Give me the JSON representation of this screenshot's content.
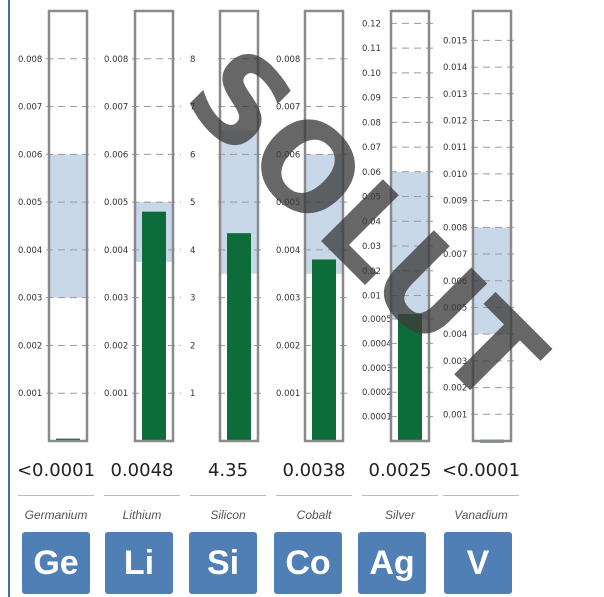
{
  "watermark": "SOLUT",
  "colors": {
    "bar": "#0e6b3a",
    "band": "#c9d8e8",
    "tile": "#4f7fb5",
    "frame": "#8a8a8a"
  },
  "chart_data": [
    {
      "type": "bar",
      "category": "Germanium",
      "symbol": "Ge",
      "value": 5e-05,
      "value_label": "<0.0001",
      "band": [
        0.003,
        0.006
      ],
      "ylim": [
        0,
        0.009
      ],
      "ticks": [
        {
          "v": 0.001,
          "label": "0.001"
        },
        {
          "v": 0.002,
          "label": "0.002"
        },
        {
          "v": 0.003,
          "label": "0.003"
        },
        {
          "v": 0.004,
          "label": "0.004"
        },
        {
          "v": 0.005,
          "label": "0.005"
        },
        {
          "v": 0.006,
          "label": "0.006"
        },
        {
          "v": 0.007,
          "label": "0.007"
        },
        {
          "v": 0.008,
          "label": "0.008"
        }
      ]
    },
    {
      "type": "bar",
      "category": "Lithium",
      "symbol": "Li",
      "value": 0.0048,
      "value_label": "0.0048",
      "band": [
        0.00375,
        0.005
      ],
      "ylim": [
        0,
        0.009
      ],
      "ticks": [
        {
          "v": 0.001,
          "label": "0.001"
        },
        {
          "v": 0.002,
          "label": "0.002"
        },
        {
          "v": 0.003,
          "label": "0.003"
        },
        {
          "v": 0.004,
          "label": "0.004"
        },
        {
          "v": 0.005,
          "label": "0.005"
        },
        {
          "v": 0.006,
          "label": "0.006"
        },
        {
          "v": 0.007,
          "label": "0.007"
        },
        {
          "v": 0.008,
          "label": "0.008"
        }
      ]
    },
    {
      "type": "bar",
      "category": "Silicon",
      "symbol": "Si",
      "value": 4.35,
      "value_label": "4.35",
      "band": [
        3.5,
        6.5
      ],
      "ylim": [
        0,
        9
      ],
      "ticks": [
        {
          "v": 1,
          "label": "1"
        },
        {
          "v": 2,
          "label": "2"
        },
        {
          "v": 3,
          "label": "3"
        },
        {
          "v": 4,
          "label": "4"
        },
        {
          "v": 5,
          "label": "5"
        },
        {
          "v": 6,
          "label": "6"
        },
        {
          "v": 7,
          "label": "7"
        },
        {
          "v": 8,
          "label": "8"
        }
      ]
    },
    {
      "type": "bar",
      "category": "Cobalt",
      "symbol": "Co",
      "value": 0.0038,
      "value_label": "0.0038",
      "band": [
        0.0035,
        0.006
      ],
      "ylim": [
        0,
        0.009
      ],
      "ticks": [
        {
          "v": 0.001,
          "label": "0.001"
        },
        {
          "v": 0.002,
          "label": "0.002"
        },
        {
          "v": 0.003,
          "label": "0.003"
        },
        {
          "v": 0.004,
          "label": "0.004"
        },
        {
          "v": 0.005,
          "label": "0.005"
        },
        {
          "v": 0.006,
          "label": "0.006"
        },
        {
          "v": 0.007,
          "label": "0.007"
        },
        {
          "v": 0.008,
          "label": "0.008"
        }
      ]
    },
    {
      "type": "bar",
      "category": "Silver",
      "symbol": "Ag",
      "value": 0.0025,
      "value_label": "0.0025",
      "band": [
        0.0005,
        0.06
      ],
      "scale": "piecewise",
      "ylim": [
        0,
        0.125
      ],
      "ticks": [
        {
          "v": 0.0001,
          "label": "0.0001"
        },
        {
          "v": 0.0002,
          "label": "0.0002"
        },
        {
          "v": 0.0003,
          "label": "0.0003"
        },
        {
          "v": 0.0004,
          "label": "0.0004"
        },
        {
          "v": 0.0005,
          "label": "0.0005"
        },
        {
          "v": 0.01,
          "label": "0.01"
        },
        {
          "v": 0.02,
          "label": "0.02"
        },
        {
          "v": 0.03,
          "label": "0.03"
        },
        {
          "v": 0.04,
          "label": "0.04"
        },
        {
          "v": 0.05,
          "label": "0.05"
        },
        {
          "v": 0.06,
          "label": "0.06"
        },
        {
          "v": 0.07,
          "label": "0.07"
        },
        {
          "v": 0.08,
          "label": "0.08"
        },
        {
          "v": 0.09,
          "label": "0.09"
        },
        {
          "v": 0.1,
          "label": "0.10"
        },
        {
          "v": 0.11,
          "label": "0.11"
        },
        {
          "v": 0.12,
          "label": "0.12"
        }
      ]
    },
    {
      "type": "bar",
      "category": "Vanadium",
      "symbol": "V",
      "value": 5e-05,
      "value_label": "<0.0001",
      "band": [
        0.004,
        0.008
      ],
      "ylim": [
        0,
        0.0161
      ],
      "ticks": [
        {
          "v": 0.001,
          "label": "0.001"
        },
        {
          "v": 0.002,
          "label": "0.002"
        },
        {
          "v": 0.003,
          "label": "0.003"
        },
        {
          "v": 0.004,
          "label": "0.004"
        },
        {
          "v": 0.005,
          "label": "0.005"
        },
        {
          "v": 0.006,
          "label": "0.006"
        },
        {
          "v": 0.007,
          "label": "0.007"
        },
        {
          "v": 0.008,
          "label": "0.008"
        },
        {
          "v": 0.009,
          "label": "0.009"
        },
        {
          "v": 0.01,
          "label": "0.010"
        },
        {
          "v": 0.011,
          "label": "0.011"
        },
        {
          "v": 0.012,
          "label": "0.012"
        },
        {
          "v": 0.013,
          "label": "0.013"
        },
        {
          "v": 0.014,
          "label": "0.014"
        },
        {
          "v": 0.015,
          "label": "0.015"
        }
      ]
    }
  ]
}
